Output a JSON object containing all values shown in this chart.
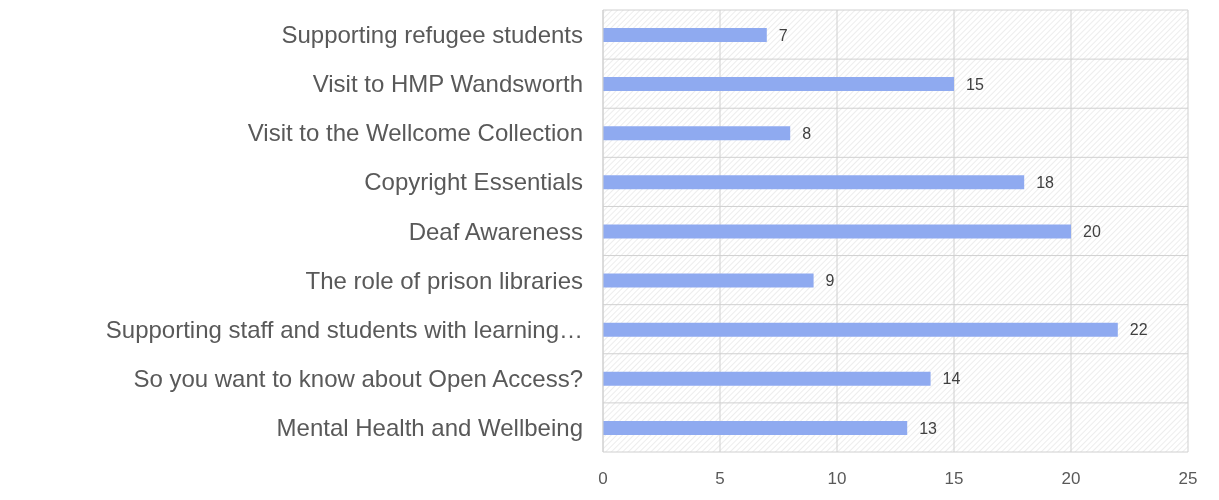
{
  "chart_data": {
    "type": "bar",
    "orientation": "horizontal",
    "categories": [
      "Supporting refugee students",
      "Visit to HMP Wandsworth",
      "Visit to the Wellcome Collection",
      "Copyright Essentials",
      "Deaf Awareness",
      "The role of prison libraries",
      "Supporting staff and students with learning…",
      "So you want to know about Open Access? ",
      "Mental Health and Wellbeing"
    ],
    "values": [
      7,
      15,
      8,
      18,
      20,
      9,
      22,
      14,
      13
    ],
    "color": "#8faaf0",
    "xlim": [
      0,
      25
    ],
    "xticks": [
      0,
      5,
      10,
      15,
      20,
      25
    ],
    "grid": true,
    "data_labels": true,
    "legend": false
  }
}
